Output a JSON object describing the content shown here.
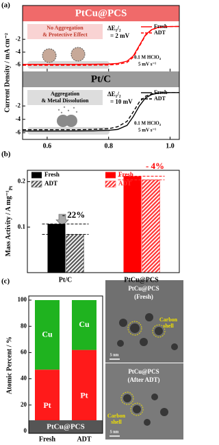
{
  "chart_data": [
    {
      "type": "line",
      "panel": "(a)",
      "ylabel": "Current Density / mA cm⁻²",
      "xlim": [
        0.52,
        1.03
      ],
      "xticks": [
        0.6,
        0.8,
        {
          "value": 1,
          "label": "1.0"
        }
      ],
      "x": [
        0.52,
        0.6,
        0.7,
        0.75,
        0.8,
        0.83,
        0.86,
        0.88,
        0.9,
        0.92,
        0.94,
        0.96,
        0.98,
        1.0,
        1.03
      ],
      "subplots": [
        {
          "title": "PtCu@PCS",
          "header_color": "#f06a6a",
          "title_color": "#ffffff",
          "ylim": [
            -7,
            0.8
          ],
          "yticks": [
            -6,
            -4,
            -2
          ],
          "annotation": [
            "No Aggregation",
            "& Protective Effect"
          ],
          "annotation_color": "#c0392b",
          "annotation_fill": "#f9d3d3",
          "delta": [
            "ΔE₁/₂",
            "= 2 mV"
          ],
          "conditions": [
            "0.1 M HClO₄",
            "5 mV s⁻¹"
          ],
          "series": [
            {
              "name": "Fresh",
              "color": "#ff0000",
              "dash": false,
              "values": [
                -5.9,
                -5.9,
                -5.9,
                -5.88,
                -5.85,
                -5.75,
                -5.4,
                -4.6,
                -2.95,
                -1.3,
                -0.5,
                -0.15,
                -0.05,
                -0.01,
                0
              ]
            },
            {
              "name": "ADT",
              "color": "#ff0000",
              "dash": true,
              "values": [
                -6.05,
                -6.05,
                -6.05,
                -6.03,
                -6.0,
                -5.9,
                -5.6,
                -4.8,
                -3.1,
                -1.4,
                -0.55,
                -0.18,
                -0.06,
                -0.02,
                0
              ]
            }
          ]
        },
        {
          "title": "Pt/C",
          "header_color": "#9a9a9a",
          "title_color": "#000000",
          "ylim": [
            -7,
            0.8
          ],
          "yticks": [
            -6,
            -4,
            -2
          ],
          "annotation": [
            "Aggregation",
            "& Metal Dissolution"
          ],
          "annotation_color": "#000000",
          "annotation_fill": "#dddddd",
          "delta": [
            "ΔE₁/₂",
            "= 10 mV"
          ],
          "conditions": [
            "0.1 M HClO₄",
            "5 mV s⁻¹"
          ],
          "series": [
            {
              "name": "Fresh",
              "color": "#000000",
              "dash": false,
              "values": [
                -5.75,
                -5.75,
                -5.74,
                -5.72,
                -5.65,
                -5.5,
                -4.9,
                -3.6,
                -2.0,
                -0.8,
                -0.3,
                -0.1,
                -0.03,
                0,
                0
              ]
            },
            {
              "name": "ADT",
              "color": "#000000",
              "dash": true,
              "values": [
                -5.55,
                -5.55,
                -5.54,
                -5.5,
                -5.4,
                -5.1,
                -4.3,
                -2.9,
                -1.4,
                -0.55,
                -0.2,
                -0.06,
                -0.02,
                0,
                0
              ]
            }
          ]
        }
      ]
    },
    {
      "type": "bar",
      "panel": "(b)",
      "ylabel": "Mass Activity / A mg⁻¹",
      "ylabel_sub": "Pt",
      "categories": [
        "Pt/C",
        "PtCu@PCS"
      ],
      "series": [
        {
          "name": "Fresh",
          "colors": [
            "#000000",
            "#ff0000"
          ],
          "hatch": false,
          "values": [
            0.107,
            0.212
          ]
        },
        {
          "name": "ADT",
          "colors": [
            "#555555",
            "#ff3333"
          ],
          "hatch": true,
          "values": [
            0.084,
            0.204
          ]
        }
      ],
      "ylim": [
        0,
        0.225
      ],
      "yticks": [
        0.1,
        0.2
      ],
      "annotations": [
        {
          "text": "- 22%",
          "color": "#000000"
        },
        {
          "text": "- 4%",
          "color": "#ff0000"
        }
      ]
    },
    {
      "type": "stacked_bar",
      "panel": "(c)",
      "ylabel": "Atomic Percent / %",
      "categories": [
        "Fresh",
        "ADT"
      ],
      "series": [
        {
          "name": "Pt",
          "color": "#ff1a1a",
          "values": [
            47,
            62
          ]
        },
        {
          "name": "Cu",
          "color": "#1fb31f",
          "values": [
            53,
            38
          ]
        }
      ],
      "ylim": [
        0,
        100
      ],
      "yticks": [
        0,
        20,
        40,
        60,
        80,
        100
      ],
      "label": "PtCu@PCS",
      "images": [
        {
          "title": [
            "PtCu@PCS",
            "(Fresh)"
          ],
          "callout": [
            "Carbon",
            "shell"
          ],
          "scale": "5 nm"
        },
        {
          "title": [
            "PtCu@PCS",
            "(After ADT)"
          ],
          "callout": [
            "Carbon",
            "shell"
          ],
          "scale": "5 nm"
        }
      ]
    }
  ]
}
